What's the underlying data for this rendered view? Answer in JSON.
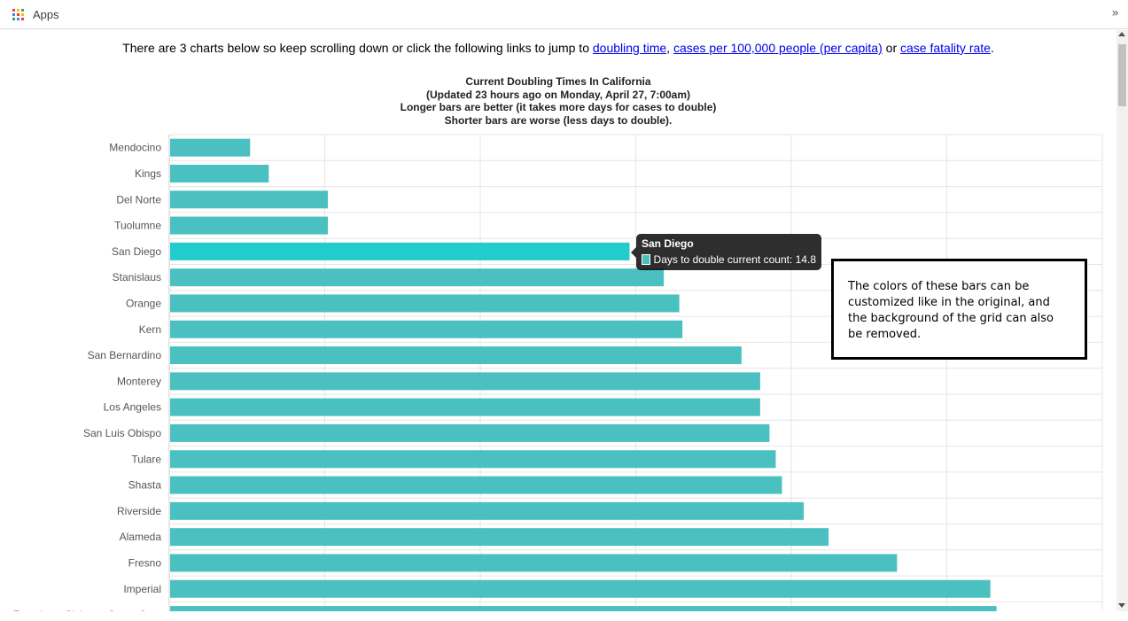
{
  "browser": {
    "apps_label": "Apps",
    "overflow_glyph": "»",
    "apps_icon_colors": [
      "#ea4335",
      "#fbbc05",
      "#34a853",
      "#4285f4",
      "#ea4335",
      "#fbbc05",
      "#34a853",
      "#4285f4",
      "#ea4335"
    ]
  },
  "intro": {
    "before": "There are 3 charts below so keep scrolling down or click the following links to jump to ",
    "link_doubling": "doubling time",
    "sep1": ", ",
    "link_capita": "cases per 100,000 people (per capita)",
    "sep2": " or ",
    "link_fatality": "case fatality rate",
    "after": "."
  },
  "chart_data": {
    "type": "bar",
    "orientation": "horizontal",
    "title_lines": [
      "Current Doubling Times In California",
      "(Updated 23 hours ago on Monday, April 27, 7:00am)",
      "Longer bars are better (it takes more days for cases to double)",
      "Shorter bars are worse (less days to double)."
    ],
    "categories": [
      "Mendocino",
      "Kings",
      "Del Norte",
      "Tuolumne",
      "San Diego",
      "Stanislaus",
      "Orange",
      "Kern",
      "San Bernardino",
      "Monterey",
      "Los Angeles",
      "San Luis Obispo",
      "Tulare",
      "Shasta",
      "Riverside",
      "Alameda",
      "Fresno",
      "Imperial",
      "San Francisco, Siskyou, Santa Cruz"
    ],
    "series": [
      {
        "name": "Days to double current count",
        "values": [
          2.6,
          3.2,
          5.1,
          5.1,
          14.8,
          15.9,
          16.4,
          16.5,
          18.4,
          19.0,
          19.0,
          19.3,
          19.5,
          19.7,
          20.4,
          21.2,
          23.4,
          26.4,
          26.6
        ]
      }
    ],
    "xlim": [
      0,
      30
    ],
    "grid": true,
    "bar_color": "#4bc0c0",
    "highlight_color": "#22cccc",
    "highlighted_category": "San Diego"
  },
  "tooltip": {
    "title": "San Diego",
    "label": "Days to double current count: 14.8"
  },
  "annotation": {
    "text": "The colors of these bars can be customized like in the original, and the background of the grid can also be removed."
  }
}
